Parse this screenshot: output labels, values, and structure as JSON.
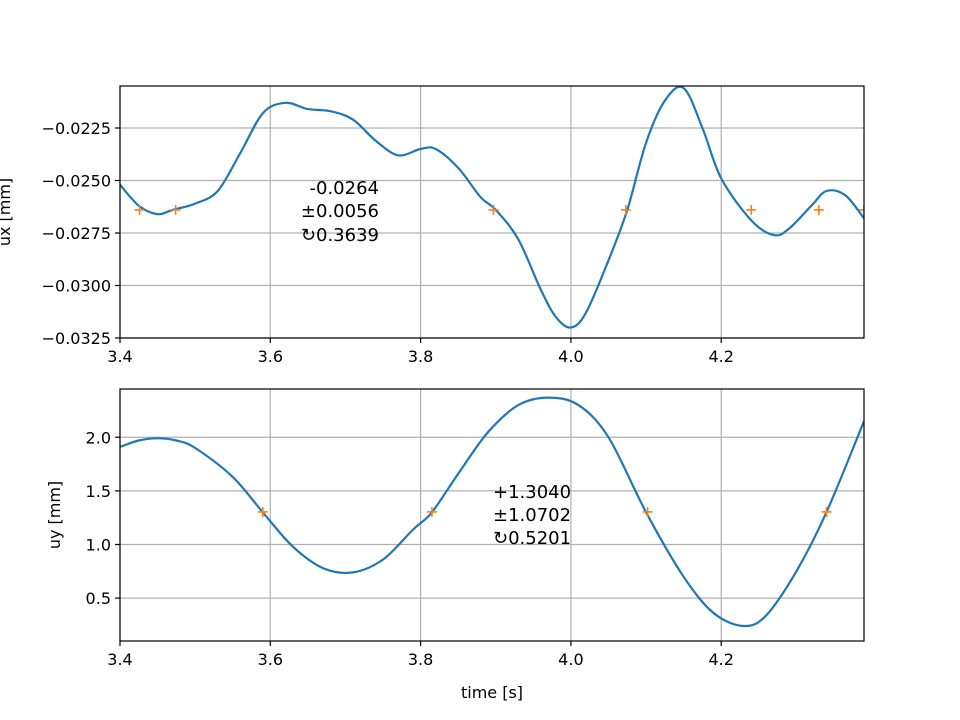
{
  "chart_data": [
    {
      "type": "line",
      "ylabel": "ux [mm]",
      "xlabel": "",
      "xlim": [
        3.4,
        4.39
      ],
      "ylim": [
        -0.0325,
        -0.0205
      ],
      "xticks": [
        3.4,
        3.6,
        3.8,
        4.0,
        4.2
      ],
      "xtick_labels": [
        "3.4",
        "3.6",
        "3.8",
        "4.0",
        "4.2"
      ],
      "yticks": [
        -0.0325,
        -0.03,
        -0.0275,
        -0.025,
        -0.0225
      ],
      "ytick_labels": [
        "−0.0325",
        "−0.0300",
        "−0.0275",
        "−0.0250",
        "−0.0225"
      ],
      "grid": true,
      "series": [
        {
          "color": "#1f77b4",
          "x": [
            3.4,
            3.425,
            3.45,
            3.47,
            3.5,
            3.53,
            3.56,
            3.59,
            3.62,
            3.65,
            3.68,
            3.71,
            3.74,
            3.77,
            3.8,
            3.82,
            3.85,
            3.88,
            3.9,
            3.93,
            3.96,
            3.98,
            4.0,
            4.02,
            4.05,
            4.075,
            4.1,
            4.125,
            4.15,
            4.175,
            4.2,
            4.24,
            4.27,
            4.29,
            4.32,
            4.34,
            4.365,
            4.39
          ],
          "y": [
            -0.0252,
            -0.0262,
            -0.0266,
            -0.0264,
            -0.0261,
            -0.0255,
            -0.0237,
            -0.0218,
            -0.0213,
            -0.0216,
            -0.0217,
            -0.0221,
            -0.0231,
            -0.0238,
            -0.0235,
            -0.0235,
            -0.0244,
            -0.0258,
            -0.0264,
            -0.0278,
            -0.0302,
            -0.0315,
            -0.032,
            -0.0313,
            -0.0288,
            -0.0264,
            -0.0232,
            -0.0212,
            -0.0206,
            -0.0225,
            -0.0249,
            -0.0269,
            -0.0276,
            -0.0273,
            -0.0262,
            -0.0255,
            -0.0257,
            -0.0268
          ]
        },
        {
          "color": "#ff7f0e",
          "marker": "+",
          "x": [
            3.426,
            3.474,
            3.897,
            4.073,
            4.24,
            4.33,
            4.39
          ],
          "y": [
            -0.0264,
            -0.0264,
            -0.0264,
            -0.0264,
            -0.0264,
            -0.0264,
            -0.0264
          ]
        }
      ],
      "annotation": [
        "-0.0264",
        "±0.0056",
        "↻0.3639"
      ]
    },
    {
      "type": "line",
      "ylabel": "uy [mm]",
      "xlabel": "time [s]",
      "xlim": [
        3.4,
        4.39
      ],
      "ylim": [
        0.1,
        2.45
      ],
      "xticks": [
        3.4,
        3.6,
        3.8,
        4.0,
        4.2
      ],
      "xtick_labels": [
        "3.4",
        "3.6",
        "3.8",
        "4.0",
        "4.2"
      ],
      "yticks": [
        0.5,
        1.0,
        1.5,
        2.0
      ],
      "ytick_labels": [
        "0.5",
        "1.0",
        "1.5",
        "2.0"
      ],
      "grid": true,
      "series": [
        {
          "color": "#1f77b4",
          "x": [
            3.4,
            3.425,
            3.45,
            3.475,
            3.5,
            3.55,
            3.59,
            3.63,
            3.67,
            3.71,
            3.75,
            3.79,
            3.815,
            3.85,
            3.89,
            3.93,
            3.97,
            4.01,
            4.05,
            4.1,
            4.15,
            4.19,
            4.23,
            4.26,
            4.3,
            4.34,
            4.39
          ],
          "y": [
            1.91,
            1.97,
            1.99,
            1.97,
            1.9,
            1.63,
            1.3,
            0.98,
            0.78,
            0.74,
            0.86,
            1.14,
            1.3,
            1.66,
            2.05,
            2.3,
            2.37,
            2.3,
            2.0,
            1.3,
            0.7,
            0.36,
            0.24,
            0.34,
            0.75,
            1.3,
            2.15
          ]
        },
        {
          "color": "#ff7f0e",
          "marker": "+",
          "x": [
            3.59,
            3.815,
            4.102,
            4.34
          ],
          "y": [
            1.304,
            1.304,
            1.304,
            1.304
          ]
        }
      ],
      "annotation": [
        "+1.3040",
        "±1.0702",
        "↻0.5201"
      ]
    }
  ]
}
